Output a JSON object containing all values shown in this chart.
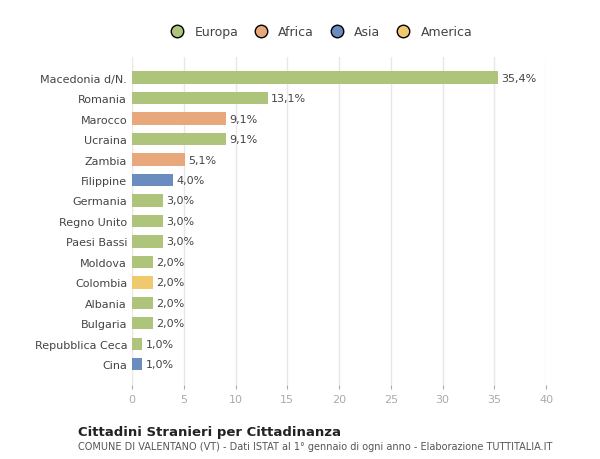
{
  "categories": [
    "Macedonia d/N.",
    "Romania",
    "Marocco",
    "Ucraina",
    "Zambia",
    "Filippine",
    "Germania",
    "Regno Unito",
    "Paesi Bassi",
    "Moldova",
    "Colombia",
    "Albania",
    "Bulgaria",
    "Repubblica Ceca",
    "Cina"
  ],
  "values": [
    35.4,
    13.1,
    9.1,
    9.1,
    5.1,
    4.0,
    3.0,
    3.0,
    3.0,
    2.0,
    2.0,
    2.0,
    2.0,
    1.0,
    1.0
  ],
  "labels": [
    "35,4%",
    "13,1%",
    "9,1%",
    "9,1%",
    "5,1%",
    "4,0%",
    "3,0%",
    "3,0%",
    "3,0%",
    "2,0%",
    "2,0%",
    "2,0%",
    "2,0%",
    "1,0%",
    "1,0%"
  ],
  "colors": [
    "#adc47a",
    "#adc47a",
    "#e8a87c",
    "#adc47a",
    "#e8a87c",
    "#6b8cbf",
    "#adc47a",
    "#adc47a",
    "#adc47a",
    "#adc47a",
    "#f0c86e",
    "#adc47a",
    "#adc47a",
    "#adc47a",
    "#6b8cbf"
  ],
  "legend_labels": [
    "Europa",
    "Africa",
    "Asia",
    "America"
  ],
  "legend_colors": [
    "#adc47a",
    "#e8a87c",
    "#6b8cbf",
    "#f0c86e"
  ],
  "xlim": [
    0,
    40
  ],
  "xticks": [
    0,
    5,
    10,
    15,
    20,
    25,
    30,
    35,
    40
  ],
  "title": "Cittadini Stranieri per Cittadinanza",
  "subtitle": "COMUNE DI VALENTANO (VT) - Dati ISTAT al 1° gennaio di ogni anno - Elaborazione TUTTITALIA.IT",
  "background_color": "#ffffff",
  "plot_bg_color": "#ffffff",
  "grid_color": "#e8e8e8",
  "bar_height": 0.6,
  "label_fontsize": 8,
  "ytick_fontsize": 8,
  "xtick_fontsize": 8
}
